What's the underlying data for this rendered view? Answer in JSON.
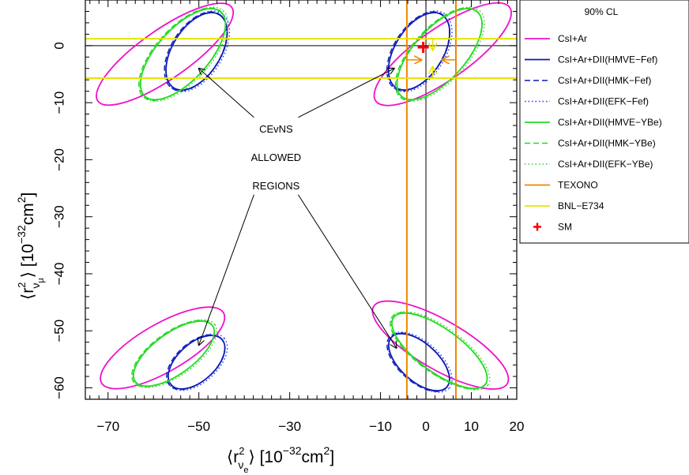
{
  "chart_data": {
    "type": "line",
    "xlabel_main": "⟨r",
    "xlabel_sup": "2",
    "xlabel_sub": "ν",
    "xlabel_subsub": "e",
    "xlabel_tail": "⟩  [10",
    "xlabel_exp": "−32",
    "xlabel_unit": "cm",
    "xlabel_unit_exp": "2",
    "xlabel_close": "]",
    "ylabel_main": "⟨r",
    "ylabel_sup": "2",
    "ylabel_sub": "ν",
    "ylabel_subsub": "μ",
    "ylabel_tail": "⟩  [10",
    "ylabel_exp": "−32",
    "ylabel_unit": "cm",
    "ylabel_unit_exp": "2",
    "ylabel_close": "]",
    "xlim": [
      -75,
      20
    ],
    "ylim": [
      -62,
      8
    ],
    "xticks": [
      -70,
      -50,
      -30,
      -10,
      0,
      10,
      20
    ],
    "xtick_labels": [
      "−70",
      "−50",
      "−30",
      "−10",
      "0",
      "10",
      "20"
    ],
    "yticks": [
      0,
      -10,
      -20,
      -30,
      -40,
      -50,
      -60
    ],
    "ytick_labels": [
      "0",
      "−10",
      "−20",
      "−30",
      "−40",
      "−50",
      "−60"
    ],
    "legend_title": "90% CL",
    "legend_position": "right",
    "annotation_lines": [
      "CEvNS",
      "ALLOWED",
      "REGIONS"
    ],
    "annotation_center": [
      -33,
      -19.5
    ],
    "arrow_targets": [
      [
        -50,
        -4
      ],
      [
        -7,
        -4
      ],
      [
        -50,
        -52.5
      ],
      [
        -6.5,
        -53
      ]
    ],
    "reference_lines": {
      "h_zero": 0,
      "v_zero": 0
    },
    "series": [
      {
        "name": "CsI+Ar",
        "color": "#ee11cc",
        "style": "solid",
        "kind": "contour",
        "regions": [
          {
            "cx": -57.5,
            "cy": -1.5,
            "rx": 18,
            "ry": 4.3,
            "angle": -35
          },
          {
            "cx": 3.7,
            "cy": -1.5,
            "rx": 18,
            "ry": 4.5,
            "angle": -35
          },
          {
            "cx": -58,
            "cy": -53,
            "rx": 15.5,
            "ry": 4.2,
            "angle": -30
          },
          {
            "cx": 3.2,
            "cy": -52.5,
            "rx": 17,
            "ry": 4.3,
            "angle": 30
          }
        ]
      },
      {
        "name": "CsI+Ar+DII(HMVE−Fef)",
        "color": "#0a1ab0",
        "style": "solid",
        "kind": "contour",
        "regions": [
          {
            "cx": -50.5,
            "cy": -1.0,
            "rx": 9.5,
            "ry": 4.2,
            "angle": -58
          },
          {
            "cx": -1.5,
            "cy": -1.0,
            "rx": 9.5,
            "ry": 4.2,
            "angle": -58
          },
          {
            "cx": -50.5,
            "cy": -55.5,
            "rx": 7.5,
            "ry": 3.3,
            "angle": -42
          },
          {
            "cx": -1.5,
            "cy": -55.5,
            "rx": 8.2,
            "ry": 3.3,
            "angle": 42
          }
        ]
      },
      {
        "name": "CsI+Ar+DII(HMK−Fef)",
        "color": "#0a1ab0",
        "style": "dashed",
        "kind": "contour",
        "regions": [
          {
            "cx": -50.7,
            "cy": -1.0,
            "rx": 9.7,
            "ry": 4.3,
            "angle": -58
          },
          {
            "cx": -1.7,
            "cy": -1.0,
            "rx": 9.7,
            "ry": 4.3,
            "angle": -58
          },
          {
            "cx": -50.7,
            "cy": -55.5,
            "rx": 7.7,
            "ry": 3.4,
            "angle": -42
          },
          {
            "cx": -1.7,
            "cy": -55.5,
            "rx": 8.4,
            "ry": 3.4,
            "angle": 42
          }
        ]
      },
      {
        "name": "CsI+Ar+DII(EFK−Fef)",
        "color": "#2233ff",
        "style": "dotted",
        "kind": "contour",
        "regions": [
          {
            "cx": -50.3,
            "cy": -1.0,
            "rx": 9.9,
            "ry": 4.4,
            "angle": -58
          },
          {
            "cx": -1.3,
            "cy": -1.0,
            "rx": 9.9,
            "ry": 4.4,
            "angle": -58
          },
          {
            "cx": -50.3,
            "cy": -55.5,
            "rx": 7.9,
            "ry": 3.5,
            "angle": -42
          },
          {
            "cx": -1.3,
            "cy": -55.5,
            "rx": 8.6,
            "ry": 3.5,
            "angle": 42
          }
        ]
      },
      {
        "name": "CsI+Ar+DII(HMVE−YBe)",
        "color": "#22dd22",
        "style": "solid",
        "kind": "contour",
        "regions": [
          {
            "cx": -53.5,
            "cy": -1.5,
            "rx": 12.5,
            "ry": 4.5,
            "angle": -48
          },
          {
            "cx": 3.0,
            "cy": -1.5,
            "rx": 12.5,
            "ry": 4.5,
            "angle": -48
          },
          {
            "cx": -55.5,
            "cy": -54.0,
            "rx": 10.5,
            "ry": 3.6,
            "angle": -36
          },
          {
            "cx": 3.0,
            "cy": -53.5,
            "rx": 12.5,
            "ry": 3.8,
            "angle": 36
          }
        ]
      },
      {
        "name": "CsI+Ar+DII(HMK−YBe)",
        "color": "#22dd22",
        "style": "dashed",
        "kind": "contour",
        "regions": [
          {
            "cx": -53.7,
            "cy": -1.5,
            "rx": 12.7,
            "ry": 4.6,
            "angle": -48
          },
          {
            "cx": 2.8,
            "cy": -1.5,
            "rx": 12.7,
            "ry": 4.6,
            "angle": -48
          },
          {
            "cx": -55.7,
            "cy": -54.0,
            "rx": 10.7,
            "ry": 3.7,
            "angle": -36
          },
          {
            "cx": 2.8,
            "cy": -53.5,
            "rx": 12.7,
            "ry": 3.9,
            "angle": 36
          }
        ]
      },
      {
        "name": "CsI+Ar+DII(EFK−YBe)",
        "color": "#33cc33",
        "style": "dotted",
        "kind": "contour",
        "regions": [
          {
            "cx": -53.3,
            "cy": -1.5,
            "rx": 12.9,
            "ry": 4.7,
            "angle": -48
          },
          {
            "cx": 3.2,
            "cy": -1.5,
            "rx": 12.9,
            "ry": 4.7,
            "angle": -48
          },
          {
            "cx": -55.3,
            "cy": -54.0,
            "rx": 10.9,
            "ry": 3.8,
            "angle": -36
          },
          {
            "cx": 3.2,
            "cy": -53.5,
            "rx": 12.9,
            "ry": 4.0,
            "angle": 36
          }
        ]
      },
      {
        "name": "TEXONO",
        "color": "#ee8800",
        "style": "solid",
        "kind": "vlines",
        "values": [
          -4.2,
          6.6
        ]
      },
      {
        "name": "BNL−E734",
        "color": "#e6e600",
        "style": "solid",
        "kind": "hlines",
        "values": [
          1.2,
          -5.7
        ]
      },
      {
        "name": "SM",
        "color": "#ff0000",
        "style": "plus",
        "kind": "point",
        "x": -0.6,
        "y": -0.3
      }
    ],
    "texono_arrows": [
      [
        -4.2,
        -2.5,
        -1.0,
        -2.5
      ],
      [
        6.6,
        -2.5,
        3.6,
        -2.5
      ]
    ],
    "bnl_arrows": [
      [
        1.5,
        1.2,
        1.5,
        -0.8
      ],
      [
        1.5,
        -5.7,
        1.5,
        -3.7
      ]
    ]
  }
}
